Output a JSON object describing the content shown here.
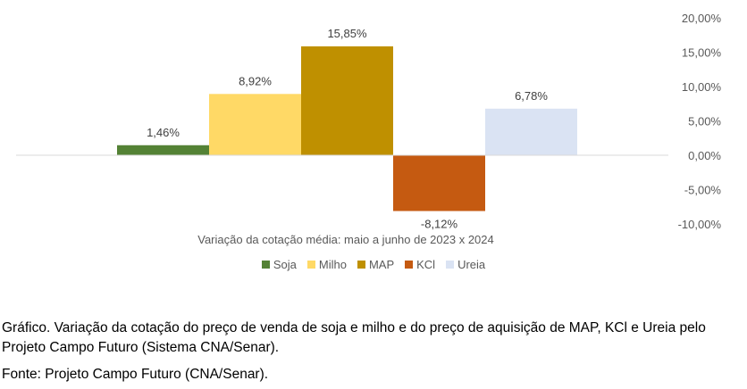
{
  "chart_data": {
    "type": "bar",
    "categories": [
      "Soja",
      "Milho",
      "MAP",
      "KCl",
      "Ureia"
    ],
    "values": [
      1.46,
      8.92,
      15.85,
      -8.12,
      6.78
    ],
    "value_labels": [
      "1,46%",
      "8,92%",
      "15,85%",
      "-8,12%",
      "6,78%"
    ],
    "colors": [
      "#548235",
      "#FFD966",
      "#BF9000",
      "#C55A11",
      "#DAE3F3"
    ],
    "label_colors": [
      "#404040",
      "#404040",
      "#404040",
      "#FF0000",
      "#404040"
    ],
    "y_ticks": [
      "20,00%",
      "15,00%",
      "10,00%",
      "5,00%",
      "0,00%",
      "-5,00%",
      "-10,00%"
    ],
    "ylim": [
      -10,
      20
    ],
    "xlabel": "Variação da cotação média: maio a junho de 2023 x 2024",
    "y_axis_side": "right",
    "grid": false,
    "legend_position": "bottom"
  },
  "caption": {
    "text": "Gráfico. Variação da cotação do preço de venda de soja e milho e do preço de aquisição de MAP, KCl e Ureia pelo Projeto Campo Futuro (Sistema CNA/Senar).",
    "source": "Fonte: Projeto Campo Futuro (CNA/Senar)."
  }
}
